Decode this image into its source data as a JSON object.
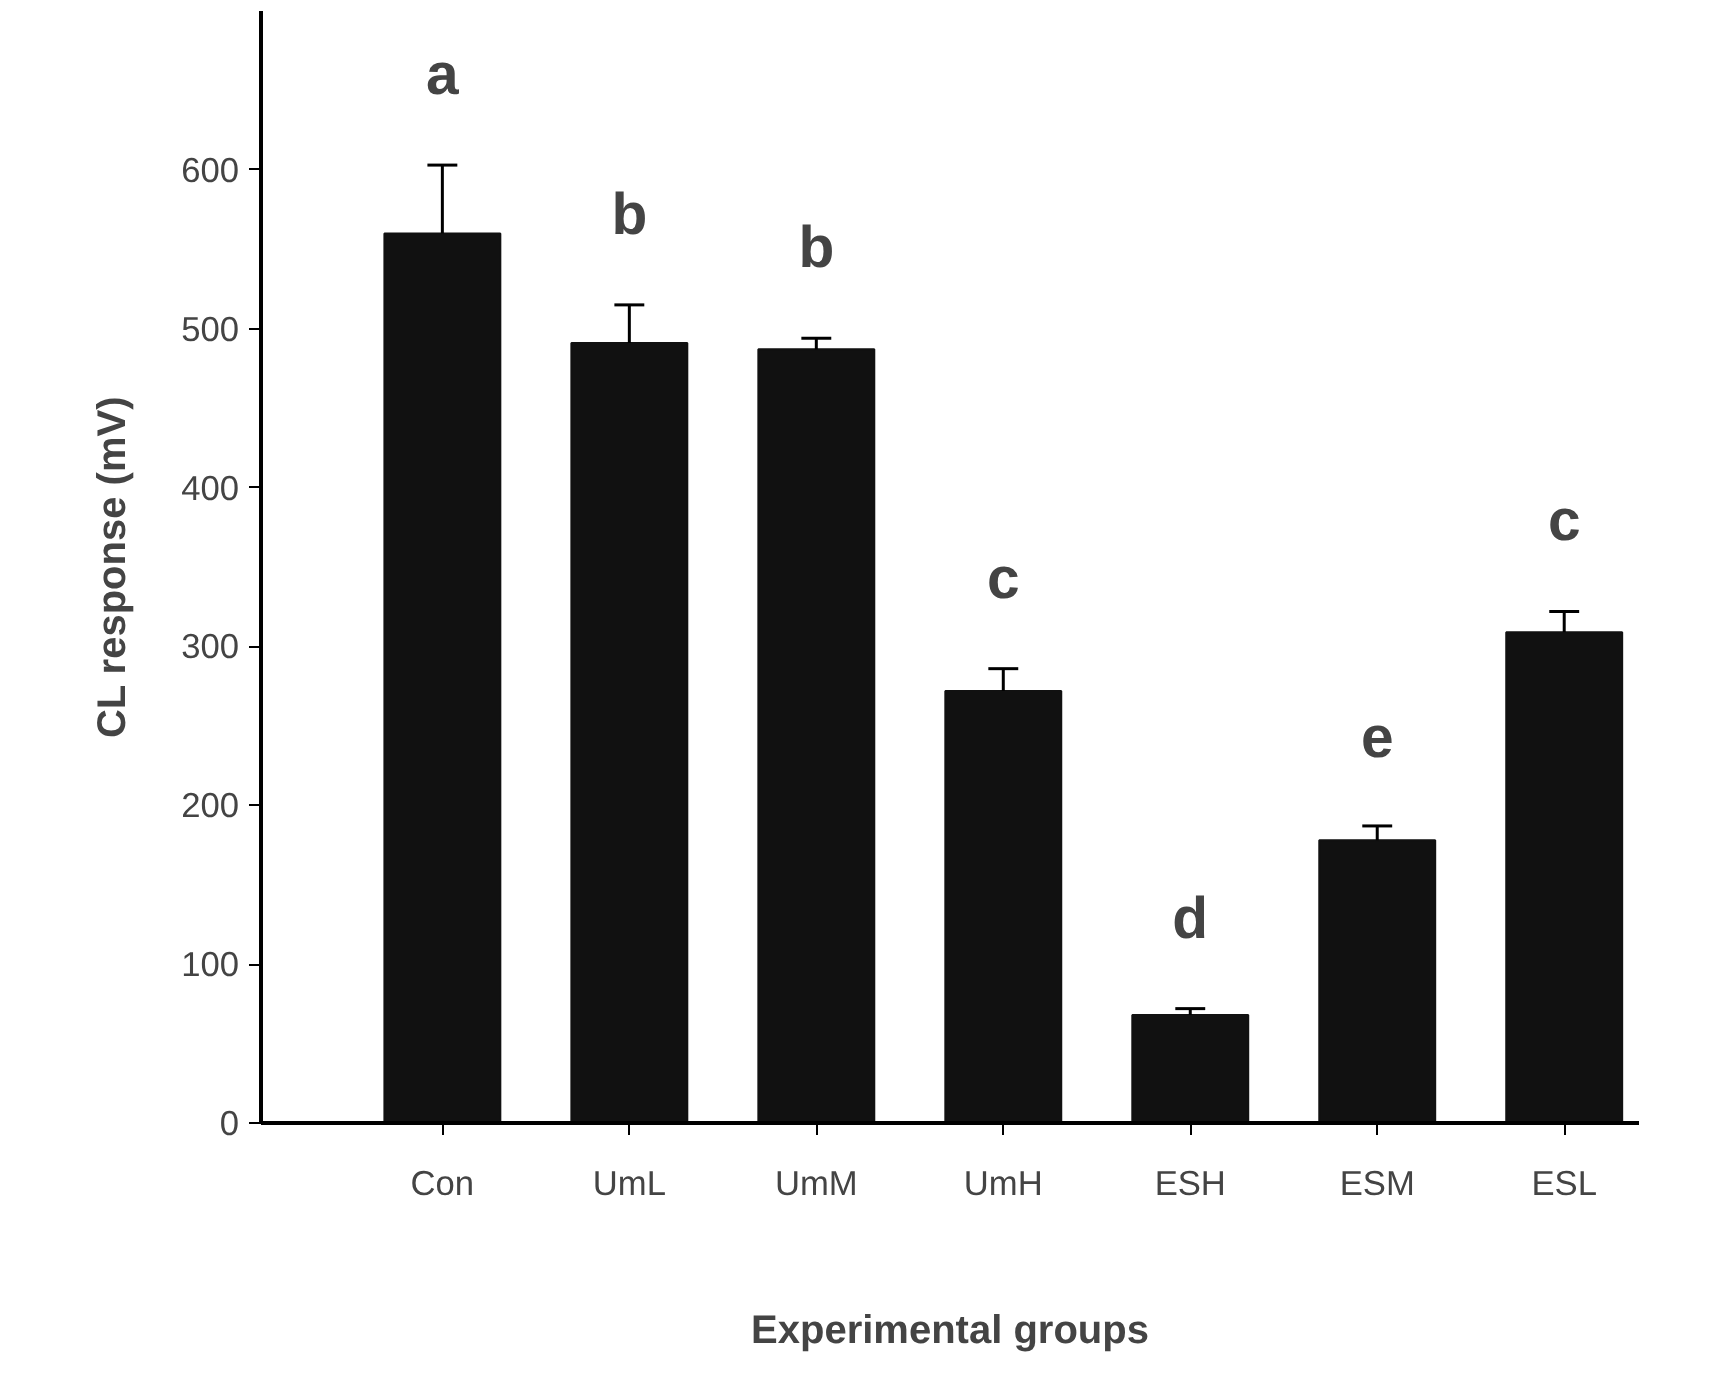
{
  "chart_data": {
    "type": "bar",
    "xlabel": "Experimental groups",
    "ylabel": "CL response (mV)",
    "categories": [
      "Con",
      "UmL",
      "UmM",
      "UmH",
      "ESH",
      "ESM",
      "ESL"
    ],
    "values": [
      560,
      491,
      487,
      272,
      68,
      178,
      309
    ],
    "errors": [
      [
        560,
        603
      ],
      [
        491,
        515
      ],
      [
        487,
        494
      ],
      [
        272,
        286
      ],
      [
        68,
        72
      ],
      [
        178,
        187
      ],
      [
        309,
        322
      ]
    ],
    "color": "#111111",
    "ylim": [
      0,
      700
    ],
    "yticks": [
      0,
      100,
      200,
      300,
      400,
      500,
      600
    ],
    "grid": false,
    "annotations": [
      "a",
      "b",
      "b",
      "c",
      "d",
      "e",
      "c"
    ]
  }
}
